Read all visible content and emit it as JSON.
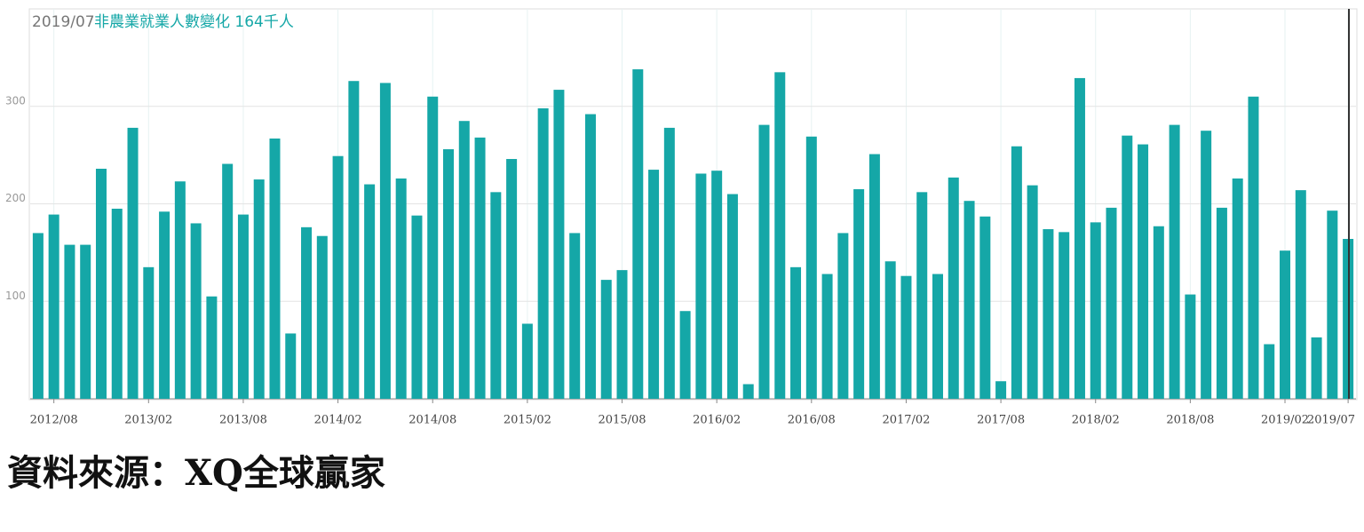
{
  "chart_data": {
    "type": "bar",
    "title_date": "2019/07",
    "title": "非農業就業人數變化 164千人",
    "source": "資料來源：XQ全球贏家",
    "color": "#15a7a7",
    "grid": true,
    "ylim": [
      0,
      400
    ],
    "yticks": [
      100,
      200,
      300
    ],
    "categories": [
      null,
      "2012/08",
      null,
      null,
      null,
      null,
      null,
      "2013/02",
      null,
      null,
      null,
      null,
      null,
      "2013/08",
      null,
      null,
      null,
      null,
      null,
      "2014/02",
      null,
      null,
      null,
      null,
      null,
      "2014/08",
      null,
      null,
      null,
      null,
      null,
      "2015/02",
      null,
      null,
      null,
      null,
      null,
      "2015/08",
      null,
      null,
      null,
      null,
      null,
      "2016/02",
      null,
      null,
      null,
      null,
      null,
      "2016/08",
      null,
      null,
      null,
      null,
      null,
      "2017/02",
      null,
      null,
      null,
      null,
      null,
      "2017/08",
      null,
      null,
      null,
      null,
      null,
      "2018/02",
      null,
      null,
      null,
      null,
      null,
      "2018/08",
      null,
      null,
      null,
      null,
      null,
      "2019/02",
      null,
      null,
      null,
      "2019/07"
    ],
    "values": [
      170,
      189,
      158,
      158,
      236,
      195,
      278,
      135,
      192,
      223,
      180,
      105,
      241,
      189,
      225,
      267,
      67,
      176,
      167,
      249,
      326,
      220,
      324,
      226,
      188,
      310,
      256,
      285,
      268,
      212,
      246,
      77,
      298,
      317,
      170,
      292,
      122,
      132,
      338,
      235,
      278,
      90,
      231,
      234,
      210,
      15,
      281,
      335,
      135,
      269,
      128,
      170,
      215,
      251,
      141,
      126,
      212,
      128,
      227,
      203,
      187,
      18,
      259,
      219,
      174,
      171,
      329,
      181,
      196,
      270,
      261,
      177,
      281,
      107,
      275,
      196,
      226,
      310,
      56,
      152,
      214,
      63,
      193,
      164
    ]
  }
}
